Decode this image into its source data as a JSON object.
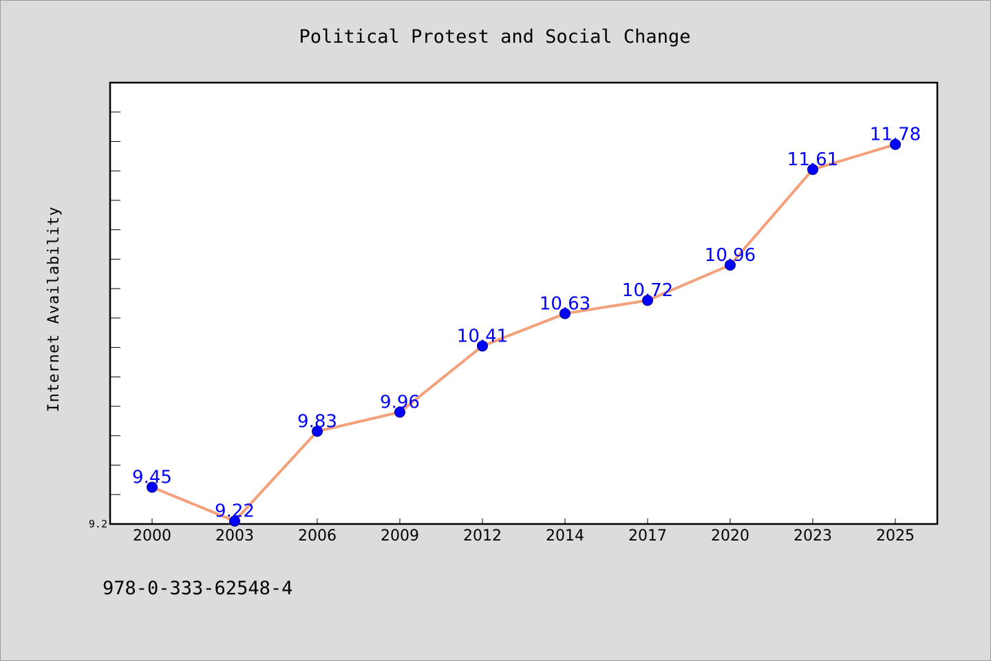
{
  "chart_data": {
    "type": "line",
    "title": "Political Protest and Social Change",
    "xlabel": "",
    "ylabel": "Internet Availability",
    "categories": [
      "2000",
      "2003",
      "2006",
      "2009",
      "2012",
      "2014",
      "2017",
      "2020",
      "2023",
      "2025"
    ],
    "series": [
      {
        "values": [
          9.45,
          9.22,
          9.83,
          9.96,
          10.41,
          10.63,
          10.72,
          10.96,
          11.61,
          11.78
        ]
      }
    ],
    "data_labels": [
      "9.45",
      "9.22",
      "9.83",
      "9.96",
      "10.41",
      "10.63",
      "10.72",
      "10.96",
      "11.61",
      "11.78"
    ],
    "y_tick_labels": [
      "9.2"
    ],
    "ylim": [
      9.2,
      12.2
    ],
    "grid": false,
    "legend": "none",
    "colors": {
      "line": "#f4a07a",
      "marker": "#0000ff",
      "data_label": "#0000ff",
      "plot_background": "#ffffff",
      "figure_background": "#dcdcdc"
    }
  },
  "footer": {
    "text": "978-0-333-62548-4"
  }
}
